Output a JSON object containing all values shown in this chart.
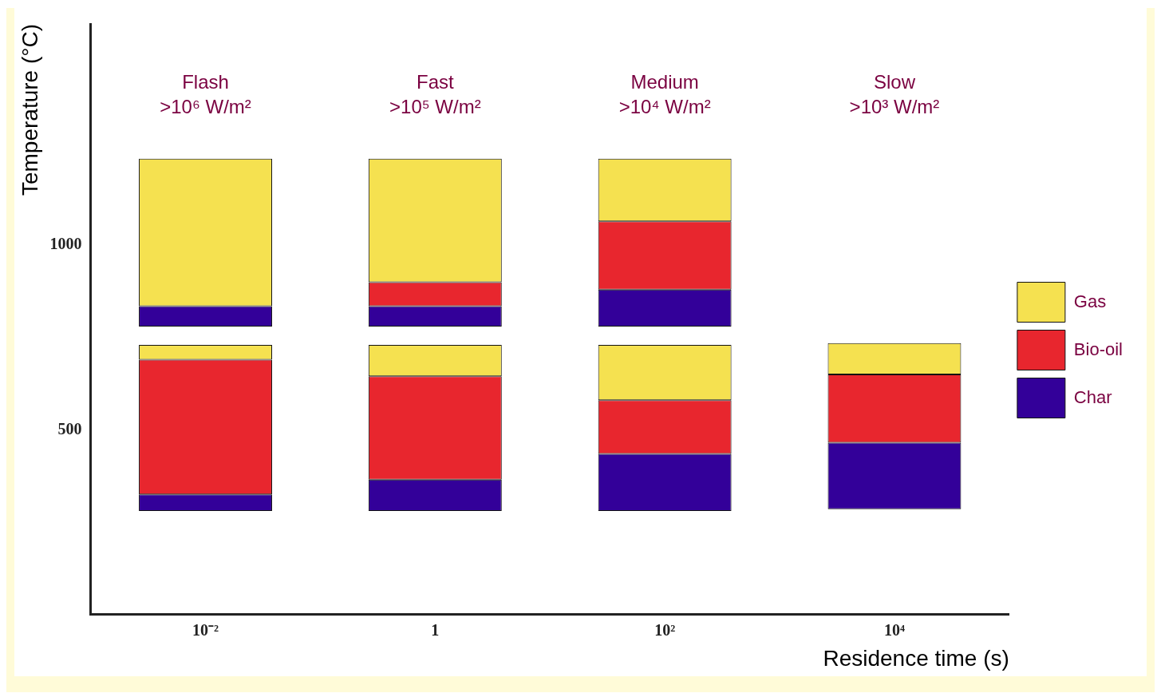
{
  "chart_data": {
    "type": "bar",
    "xlabel": "Residence time (s)",
    "ylabel": "Temperature (°C)",
    "categories": [
      "10⁻²",
      "1",
      "10²",
      "10⁴"
    ],
    "series": [
      {
        "name": "Char",
        "color": "#330099",
        "base": [
          280,
          280,
          280,
          285
        ],
        "values": [
          45,
          85,
          155,
          180
        ]
      },
      {
        "name": "Bio-oil",
        "color": "#e8262e",
        "base": [
          325,
          365,
          435,
          465
        ],
        "values": [
          365,
          280,
          145,
          185
        ]
      },
      {
        "name": "Gas",
        "color": "#f5e150",
        "base": [
          690,
          645,
          580,
          650
        ],
        "values": [
          40,
          85,
          150,
          85
        ]
      },
      {
        "color": "#330099",
        "base": [
          780,
          780,
          780,
          null
        ],
        "values": [
          55,
          55,
          100,
          null
        ]
      },
      {
        "color": "#e8262e",
        "base": [
          null,
          835,
          880,
          null
        ],
        "values": [
          null,
          65,
          185,
          null
        ]
      },
      {
        "color": "#f5e150",
        "base": [
          835,
          900,
          1065,
          null
        ],
        "values": [
          400,
          335,
          170,
          null
        ]
      }
    ],
    "ylim": [
      0,
      1600
    ],
    "yticks": [
      500,
      1000
    ],
    "grid": false,
    "legend": "right",
    "annotations": [
      "Flash\n>10⁶ W/m²",
      "Fast\n>10⁵ W/m²",
      "Medium\n>10⁴ W/m²",
      "Slow\n>10³ W/m²"
    ]
  }
}
